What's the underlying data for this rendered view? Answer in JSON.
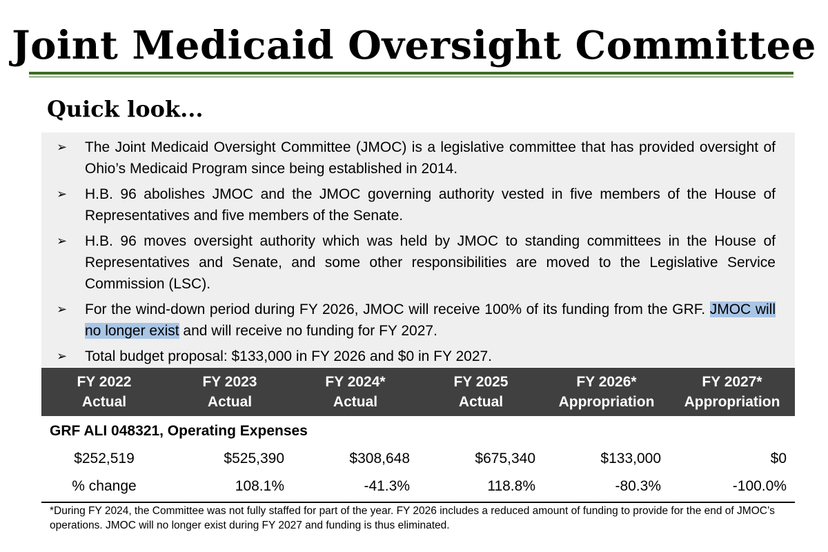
{
  "title": "Joint Medicaid Oversight Committee",
  "subtitle": "Quick look...",
  "bullets": [
    {
      "text": "The Joint Medicaid Oversight Committee (JMOC) is a legislative committee that has provided oversight of Ohio’s Medicaid Program since being established in 2014."
    },
    {
      "text": "H.B. 96 abolishes JMOC and the JMOC governing authority vested in five members of the House of Representatives and five members of the Senate."
    },
    {
      "text": "H.B. 96 moves oversight authority which was held by JMOC to standing committees in the House of Representatives and Senate, and some other responsibilities are moved to the Legislative Service Commission (LSC)."
    },
    {
      "text_before": "For the wind-down period during FY 2026, JMOC will receive 100% of its funding from the GRF. ",
      "highlight": "JMOC will no longer exist",
      "text_after": " and will receive no funding for FY 2027."
    },
    {
      "text": "Total budget proposal: $133,000 in FY 2026 and $0 in FY 2027."
    }
  ],
  "highlight_color": "#a9c5e6",
  "accent_color": "#3e6b24",
  "table": {
    "columns": [
      {
        "year": "FY 2022",
        "kind": "Actual"
      },
      {
        "year": "FY 2023",
        "kind": "Actual"
      },
      {
        "year": "FY 2024*",
        "kind": "Actual"
      },
      {
        "year": "FY 2025",
        "kind": "Actual"
      },
      {
        "year": "FY 2026*",
        "kind": "Appropriation"
      },
      {
        "year": "FY 2027*",
        "kind": "Appropriation"
      }
    ],
    "section": "GRF ALI 048321, Operating Expenses",
    "values": [
      "$252,519",
      "$525,390",
      "$308,648",
      "$675,340",
      "$133,000",
      "$0"
    ],
    "pct_label": "% change",
    "pct_changes": [
      "108.1%",
      "-41.3%",
      "118.8%",
      "-80.3%",
      "-100.0%"
    ]
  },
  "footnote": "*During FY 2024, the Committee was not fully staffed for part of the year. FY 2026 includes a reduced amount of funding to provide for the end of JMOC’s operations. JMOC will no longer exist during FY 2027 and funding is thus eliminated."
}
